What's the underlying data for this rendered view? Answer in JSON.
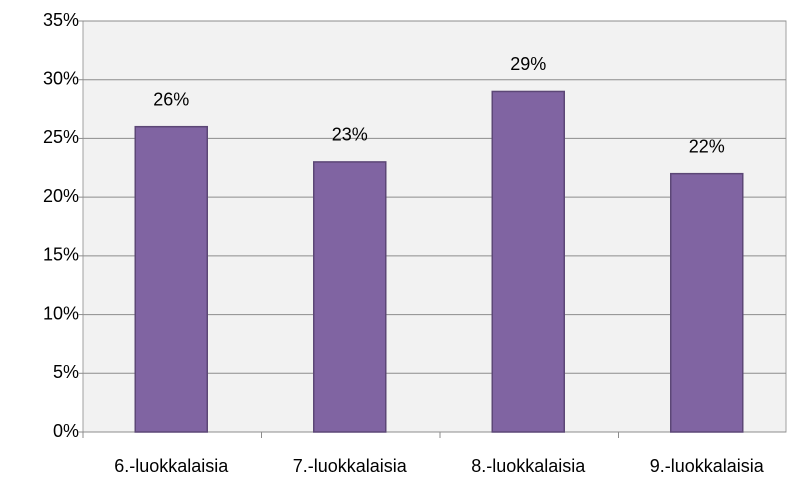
{
  "chart_data": {
    "type": "bar",
    "categories": [
      "6.-luokkalaisia",
      "7.-luokkalaisia",
      "8.-luokkalaisia",
      "9.-luokkalaisia"
    ],
    "values": [
      26,
      23,
      29,
      22
    ],
    "value_labels": [
      "26%",
      "23%",
      "29%",
      "22%"
    ],
    "color": "#8064a2",
    "ylim": [
      0,
      35
    ],
    "yticks": [
      {
        "value": 0,
        "label": "0%"
      },
      {
        "value": 5,
        "label": "5%"
      },
      {
        "value": 10,
        "label": "10%"
      },
      {
        "value": 15,
        "label": "15%"
      },
      {
        "value": 20,
        "label": "20%"
      },
      {
        "value": 25,
        "label": "25%"
      },
      {
        "value": 30,
        "label": "30%"
      },
      {
        "value": 35,
        "label": "35%"
      }
    ],
    "grid": true
  }
}
